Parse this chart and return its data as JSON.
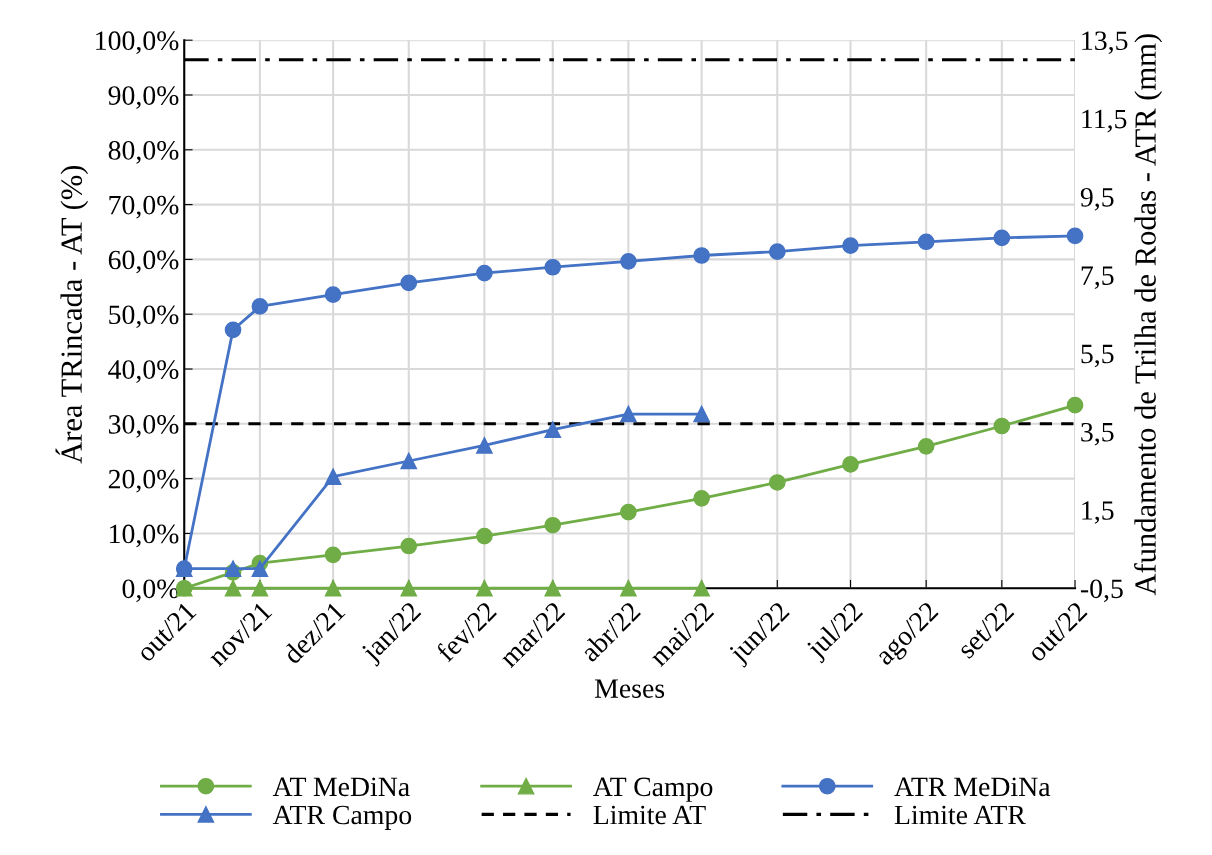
{
  "chart_data": {
    "type": "line",
    "xlabel": "Meses",
    "ylabel": "Área TRincada - AT (%)",
    "y2label": "Afundamento de Trilha de Rodas - ATR (mm)",
    "xlim": [
      "2021-10-01",
      "2022-10-01"
    ],
    "xticks": [
      {
        "value": "2021-10-01",
        "label": "out/21"
      },
      {
        "value": "2021-11-01",
        "label": "nov/21"
      },
      {
        "value": "2021-12-01",
        "label": "dez/21"
      },
      {
        "value": "2022-01-01",
        "label": "jan/22"
      },
      {
        "value": "2022-02-01",
        "label": "fev/22"
      },
      {
        "value": "2022-03-01",
        "label": "mar/22"
      },
      {
        "value": "2022-04-01",
        "label": "abr/22"
      },
      {
        "value": "2022-05-01",
        "label": "mai/22"
      },
      {
        "value": "2022-06-01",
        "label": "jun/22"
      },
      {
        "value": "2022-07-01",
        "label": "jul/22"
      },
      {
        "value": "2022-08-01",
        "label": "ago/22"
      },
      {
        "value": "2022-09-01",
        "label": "set/22"
      },
      {
        "value": "2022-10-01",
        "label": "out/22"
      }
    ],
    "ylim": [
      0,
      100
    ],
    "yticks": [
      {
        "value": 0,
        "label": "0,0%"
      },
      {
        "value": 10,
        "label": "10,0%"
      },
      {
        "value": 20,
        "label": "20,0%"
      },
      {
        "value": 30,
        "label": "30,0%"
      },
      {
        "value": 40,
        "label": "40,0%"
      },
      {
        "value": 50,
        "label": "50,0%"
      },
      {
        "value": 60,
        "label": "60,0%"
      },
      {
        "value": 70,
        "label": "70,0%"
      },
      {
        "value": 80,
        "label": "80,0%"
      },
      {
        "value": 90,
        "label": "90,0%"
      },
      {
        "value": 100,
        "label": "100,0%"
      }
    ],
    "y2lim": [
      -0.5,
      13.5
    ],
    "y2ticks": [
      {
        "value": -0.5,
        "label": "-0,5"
      },
      {
        "value": 1.5,
        "label": "1,5"
      },
      {
        "value": 3.5,
        "label": "3,5"
      },
      {
        "value": 5.5,
        "label": "5,5"
      },
      {
        "value": 7.5,
        "label": "7,5"
      },
      {
        "value": 9.5,
        "label": "9,5"
      },
      {
        "value": 11.5,
        "label": "11,5"
      },
      {
        "value": 13.5,
        "label": "13,5"
      }
    ],
    "grid": true,
    "legend": "bottom",
    "series": [
      {
        "name": "AT MeDiNa",
        "color": "#70ad47",
        "marker": "circle",
        "x": [
          "2021-10-01",
          "2021-10-21",
          "2021-11-01",
          "2021-12-01",
          "2022-01-01",
          "2022-02-01",
          "2022-03-01",
          "2022-04-01",
          "2022-05-01",
          "2022-06-01",
          "2022-07-01",
          "2022-08-01",
          "2022-09-01",
          "2022-10-01"
        ],
        "values": [
          0,
          2.9,
          4.6,
          6.1,
          7.7,
          9.5,
          11.5,
          13.9,
          16.4,
          19.3,
          22.6,
          25.9,
          29.6,
          33.4
        ]
      },
      {
        "name": "AT Campo",
        "color": "#70ad47",
        "marker": "triangle",
        "x": [
          "2021-10-01",
          "2021-10-21",
          "2021-11-01",
          "2021-12-01",
          "2022-01-01",
          "2022-02-01",
          "2022-03-01",
          "2022-04-01",
          "2022-05-01"
        ],
        "values": [
          0,
          0,
          0,
          0,
          0,
          0,
          0,
          0,
          0
        ]
      },
      {
        "name": "ATR MeDiNa",
        "color": "#4472c4",
        "marker": "circle",
        "axis": "y2",
        "x": [
          "2021-10-01",
          "2021-10-21",
          "2021-11-01",
          "2021-12-01",
          "2022-01-01",
          "2022-02-01",
          "2022-03-01",
          "2022-04-01",
          "2022-05-01",
          "2022-06-01",
          "2022-07-01",
          "2022-08-01",
          "2022-09-01",
          "2022-10-01"
        ],
        "values": [
          0,
          6.1,
          6.7,
          7.0,
          7.3,
          7.55,
          7.7,
          7.85,
          8.0,
          8.1,
          8.25,
          8.35,
          8.45,
          8.5
        ]
      },
      {
        "name": "ATR Campo",
        "color": "#4472c4",
        "marker": "triangle",
        "axis": "y2",
        "x": [
          "2021-10-01",
          "2021-10-21",
          "2021-11-01",
          "2021-12-01",
          "2022-01-01",
          "2022-02-01",
          "2022-03-01",
          "2022-04-01",
          "2022-05-01"
        ],
        "values": [
          0,
          0,
          0,
          2.35,
          2.75,
          3.15,
          3.55,
          3.95,
          3.95
        ]
      }
    ],
    "ref_lines": [
      {
        "axis": "y",
        "value": 30,
        "label": "Limite AT",
        "color": "#000000",
        "line_style": "dashed"
      },
      {
        "axis": "y2",
        "value": 13,
        "label": "Limite ATR",
        "color": "#000000",
        "line_style": "dashdot"
      }
    ]
  }
}
